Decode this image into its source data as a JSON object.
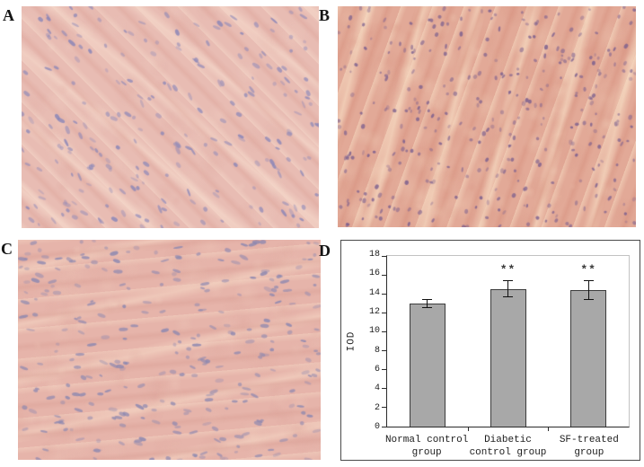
{
  "figure": {
    "background": "#ffffff",
    "panels": {
      "a": {
        "label": "A",
        "content": "myocardium-ihc-micrograph"
      },
      "b": {
        "label": "B",
        "content": "myocardium-ihc-micrograph"
      },
      "c": {
        "label": "C",
        "content": "myocardium-ihc-micrograph"
      },
      "d": {
        "label": "D",
        "content": "iod-bar-chart"
      }
    }
  },
  "micrographs": {
    "a": {
      "base": "#e8bcb3",
      "light": "#f5d8ca",
      "shade": "#dda49a",
      "nucleus": "#8a86b8",
      "fiber_angle": 45,
      "fiber_angle2": 39,
      "nucleus_angle": 45,
      "nuclei_count": 230,
      "nucleus_len": [
        4,
        10
      ],
      "blotches": 60,
      "seed": 11
    },
    "b": {
      "base": "#e2a997",
      "light": "#f7dcc3",
      "shade": "#d6907e",
      "nucleus": "#7b5f8e",
      "fiber_angle": 110,
      "fiber_angle2": 104,
      "nucleus_angle": -70,
      "nuclei_count": 330,
      "nucleus_len": [
        2.5,
        6
      ],
      "blotches": 150,
      "seed": 29
    },
    "c": {
      "base": "#e6b4aa",
      "light": "#f3d2c1",
      "shade": "#daa096",
      "nucleus": "#8b87b0",
      "fiber_angle": 175,
      "fiber_angle2": 168,
      "nucleus_angle": 5,
      "nuclei_count": 280,
      "nucleus_len": [
        4,
        11
      ],
      "blotches": 110,
      "seed": 53
    }
  },
  "chart_data": {
    "type": "bar",
    "title": "",
    "xlabel": "",
    "ylabel": "IOD",
    "categories": [
      [
        "Normal control",
        "group"
      ],
      [
        "Diabetic",
        "control group"
      ],
      [
        "SF-treated",
        "group"
      ]
    ],
    "values": [
      13.0,
      14.5,
      14.4
    ],
    "errors": [
      0.5,
      0.9,
      1.0
    ],
    "annotations": [
      "",
      "**",
      "**"
    ],
    "ylim": [
      0,
      18
    ],
    "yticks": [
      0,
      2,
      4,
      6,
      8,
      10,
      12,
      14,
      16,
      18
    ],
    "grid": false,
    "legend": null,
    "bar_fill": "#a8a8a8",
    "bar_border": "#3c3c3c",
    "axis_color": "#2b2b2b"
  }
}
